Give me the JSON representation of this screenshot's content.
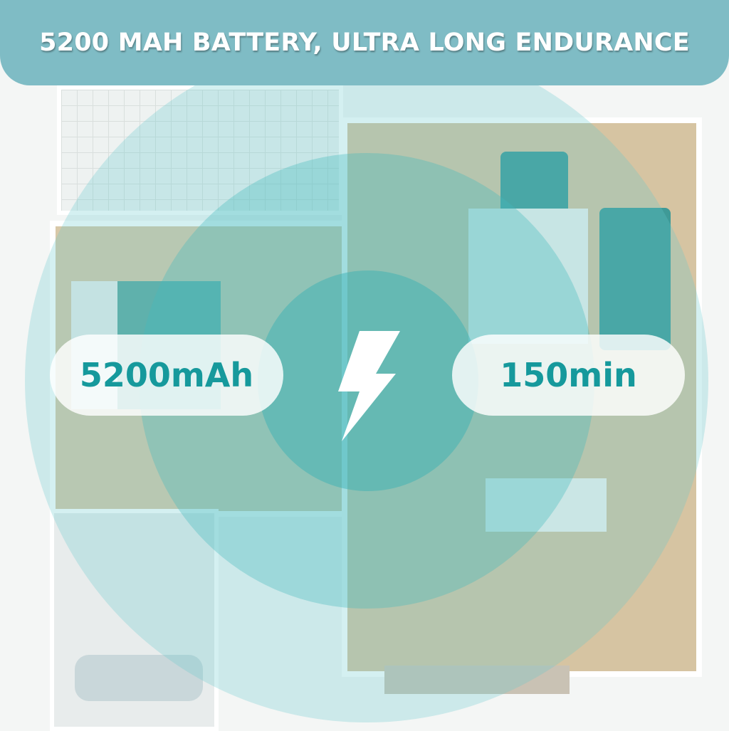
{
  "header": {
    "title": "5200 MAH BATTERY, ULTRA LONG ENDURANCE"
  },
  "stats": {
    "capacity": "5200mAh",
    "runtime": "150min"
  },
  "icons": {
    "center": "lightning-bolt-icon"
  },
  "colors": {
    "header": "#7fbcc5",
    "accent_text": "#16999c",
    "coverage": "#4fc0c6"
  }
}
